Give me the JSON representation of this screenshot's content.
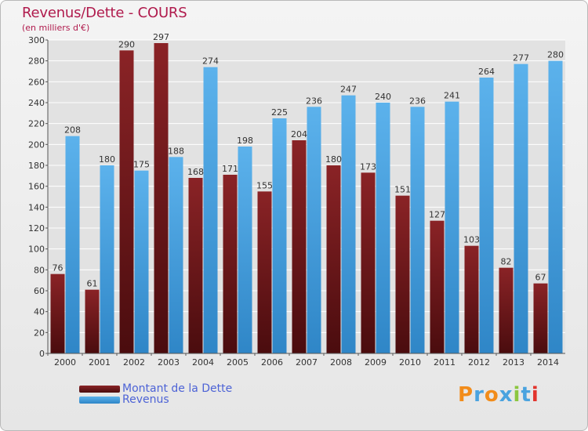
{
  "header": {
    "title": "Revenus/Dette - COURS",
    "subtitle": "(en milliers d'€)"
  },
  "colors": {
    "title": "#b01b4d",
    "debt": "#7a1b1f",
    "revenue": "#4ea7e6",
    "axis_text": "#333333",
    "grid": "#ffffff",
    "legend_text": "#4d63d6"
  },
  "legend": {
    "debt_label": "Montant de la Dette",
    "revenue_label": "Revenus"
  },
  "logo": {
    "text": "Proxiti",
    "letter_colors": [
      "#f28c1a",
      "#4aa3df",
      "#f28c1a",
      "#4aa3df",
      "#8cc63f",
      "#4aa3df",
      "#e2342d"
    ]
  },
  "chart_data": {
    "type": "bar",
    "title": "Revenus/Dette - COURS",
    "subtitle": "(en milliers d'€)",
    "xlabel": "",
    "ylabel": "",
    "ylim": [
      0,
      300
    ],
    "yticks": [
      0,
      20,
      40,
      60,
      80,
      100,
      120,
      140,
      160,
      180,
      200,
      220,
      240,
      260,
      280,
      300
    ],
    "grid": true,
    "legend_position": "bottom-left",
    "categories": [
      "2000",
      "2001",
      "2002",
      "2003",
      "2004",
      "2005",
      "2006",
      "2007",
      "2008",
      "2009",
      "2010",
      "2011",
      "2012",
      "2013",
      "2014"
    ],
    "series": [
      {
        "name": "Montant de la Dette",
        "color": "#7a1b1f",
        "values": [
          76,
          61,
          290,
          297,
          168,
          171,
          155,
          204,
          180,
          173,
          151,
          127,
          103,
          82,
          67
        ],
        "labels": [
          "76",
          "61",
          "290",
          "297",
          "168",
          "171",
          "155",
          "204",
          "180",
          "173",
          "151",
          "127",
          "103",
          "82",
          "67"
        ]
      },
      {
        "name": "Revenus",
        "color": "#4ea7e6",
        "values": [
          208,
          180,
          175,
          188,
          274,
          198,
          225,
          236,
          247,
          240,
          236,
          241,
          264,
          277,
          280
        ],
        "labels": [
          "208",
          "180",
          "175",
          "188",
          "274",
          "198",
          "225",
          "236",
          "247",
          "240",
          "236",
          "241",
          "264",
          "277",
          "280"
        ]
      }
    ]
  }
}
